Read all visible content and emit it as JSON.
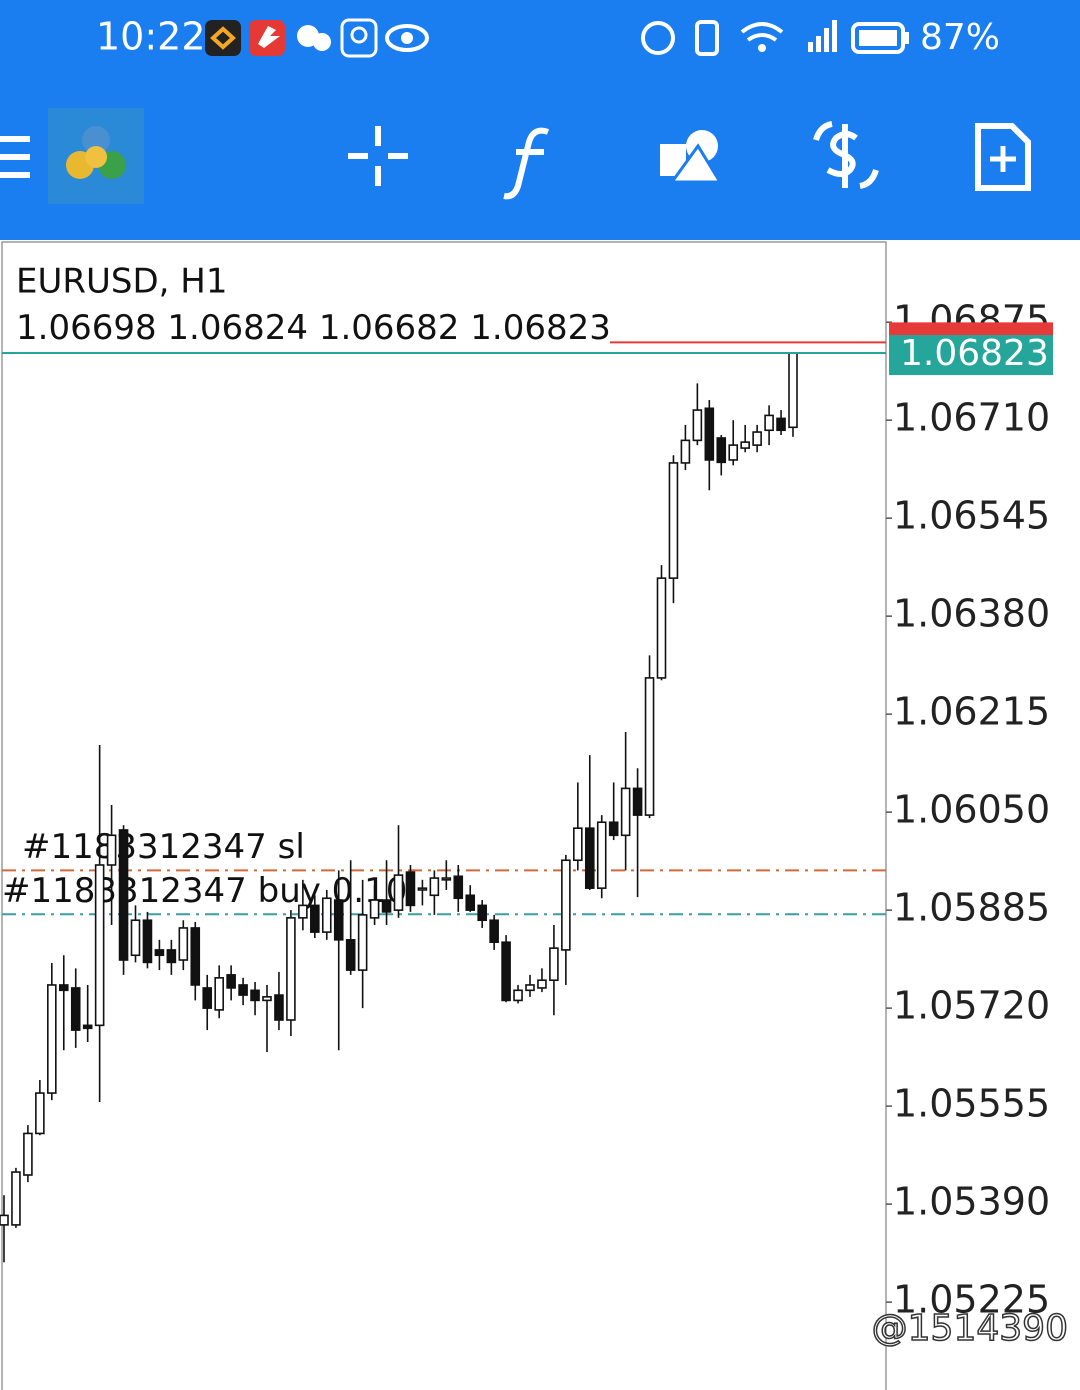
{
  "status_bar": {
    "time": "10:22",
    "battery": "87%"
  },
  "watermark": "@1514390",
  "chart_data": {
    "type": "candlestick",
    "title": "EURUSD, H1",
    "quote": [
      1.06698,
      1.06824,
      1.06682,
      1.06823
    ],
    "open": [
      1.05355,
      1.05355,
      1.05439,
      1.05509,
      1.05577,
      1.05759,
      1.05754,
      1.05691,
      1.05691,
      1.05961,
      1.0602,
      1.05809,
      1.05868,
      1.05818,
      1.05818,
      1.05801,
      1.05855,
      1.05754,
      1.05717,
      1.05776,
      1.05759,
      1.0575,
      1.05733,
      1.05742,
      1.057,
      1.05872,
      1.05893,
      1.05848,
      1.05902,
      1.05835,
      1.05784,
      1.05872,
      1.05902,
      1.05885,
      1.05949,
      1.05919,
      1.0591,
      1.05936,
      1.05942,
      1.0591,
      1.05893,
      1.05868,
      1.05831,
      1.05733,
      1.0575,
      1.05754,
      1.05767,
      1.05818,
      1.05969,
      1.06023,
      1.05922,
      1.06033,
      1.06011,
      1.0609,
      1.06045,
      1.06276,
      1.06444,
      1.06638,
      1.06676,
      1.0673,
      1.0668,
      1.06643,
      1.06663,
      1.06668,
      1.06693,
      1.06713,
      1.06698
    ],
    "high": [
      1.05405,
      1.05451,
      1.05523,
      1.05599,
      1.05796,
      1.05809,
      1.05787,
      1.05759,
      1.06163,
      1.06062,
      1.06028,
      1.05893,
      1.05882,
      1.05835,
      1.05835,
      1.05868,
      1.05865,
      1.05776,
      1.05792,
      1.05792,
      1.05771,
      1.05764,
      1.05759,
      1.05781,
      1.05885,
      1.05936,
      1.0591,
      1.05919,
      1.05952,
      1.05969,
      1.05936,
      1.05927,
      1.05969,
      1.06028,
      1.05961,
      1.05936,
      1.05952,
      1.05969,
      1.05961,
      1.05927,
      1.05902,
      1.05877,
      1.05843,
      1.05759,
      1.05776,
      1.05787,
      1.0586,
      1.05978,
      1.061,
      1.06146,
      1.06045,
      1.061,
      1.06185,
      1.06124,
      1.06314,
      1.06466,
      1.06651,
      1.06702,
      1.06772,
      1.06744,
      1.06685,
      1.0671,
      1.06702,
      1.06702,
      1.06735,
      1.06727,
      1.06824
    ],
    "low": [
      1.05292,
      1.0535,
      1.05427,
      1.05506,
      1.05565,
      1.05649,
      1.05653,
      1.05663,
      1.05562,
      1.0586,
      1.05776,
      1.05797,
      1.05787,
      1.05784,
      1.05776,
      1.05784,
      1.05733,
      1.05683,
      1.05703,
      1.05733,
      1.05725,
      1.05708,
      1.05646,
      1.05683,
      1.05673,
      1.05851,
      1.05838,
      1.05835,
      1.05649,
      1.05776,
      1.0572,
      1.0586,
      1.0586,
      1.05872,
      1.05882,
      1.05893,
      1.05877,
      1.05919,
      1.05882,
      1.05882,
      1.05855,
      1.05818,
      1.0573,
      1.05728,
      1.05739,
      1.05747,
      1.05708,
      1.05759,
      1.05952,
      1.05919,
      1.05905,
      1.06003,
      1.05952,
      1.05907,
      1.0604,
      1.06272,
      1.06402,
      1.06626,
      1.06668,
      1.06592,
      1.06617,
      1.06634,
      1.06656,
      1.06656,
      1.06668,
      1.06685,
      1.06682
    ],
    "close": [
      1.05371,
      1.05444,
      1.05509,
      1.05577,
      1.05759,
      1.0575,
      1.05683,
      1.05686,
      1.05961,
      1.06011,
      1.05801,
      1.05868,
      1.05797,
      1.05809,
      1.05797,
      1.05855,
      1.05759,
      1.0572,
      1.05771,
      1.05754,
      1.05742,
      1.05733,
      1.05739,
      1.057,
      1.05872,
      1.05893,
      1.05848,
      1.05905,
      1.05835,
      1.05784,
      1.05877,
      1.05902,
      1.05882,
      1.05944,
      1.05893,
      1.05922,
      1.05939,
      1.05939,
      1.05905,
      1.05885,
      1.05868,
      1.05831,
      1.05733,
      1.0575,
      1.05759,
      1.05767,
      1.05821,
      1.05969,
      1.06023,
      1.05922,
      1.06033,
      1.06011,
      1.0609,
      1.06045,
      1.06276,
      1.06444,
      1.06638,
      1.06676,
      1.06727,
      1.06643,
      1.06639,
      1.06668,
      1.06673,
      1.0669,
      1.06718,
      1.06693,
      1.06823
    ],
    "ylim": [
      1.05077,
      1.0701
    ],
    "yticks": [
      1.06875,
      {
        "value": 1.0671,
        "label": "1.06710"
      },
      1.06545,
      {
        "value": 1.0638,
        "label": "1.06380"
      },
      1.06215,
      {
        "value": 1.0605,
        "label": "1.06050"
      },
      1.05885,
      {
        "value": 1.0572,
        "label": "1.05720"
      },
      1.05555,
      {
        "value": 1.0539,
        "label": "1.05390"
      },
      1.05225
    ],
    "bid": 1.06823,
    "bid_color": "#26a69a",
    "ask": 1.06841,
    "ask_color": "#e5393a",
    "up_color": "#ffffff",
    "down_color": "#111111",
    "orders": [
      {
        "label": "#1183312347 sl",
        "price": 1.05952,
        "color": "#d2693a"
      },
      {
        "label": "#1183312347 buy 0.10",
        "price": 1.05878,
        "color": "#3a9ea6"
      }
    ]
  }
}
